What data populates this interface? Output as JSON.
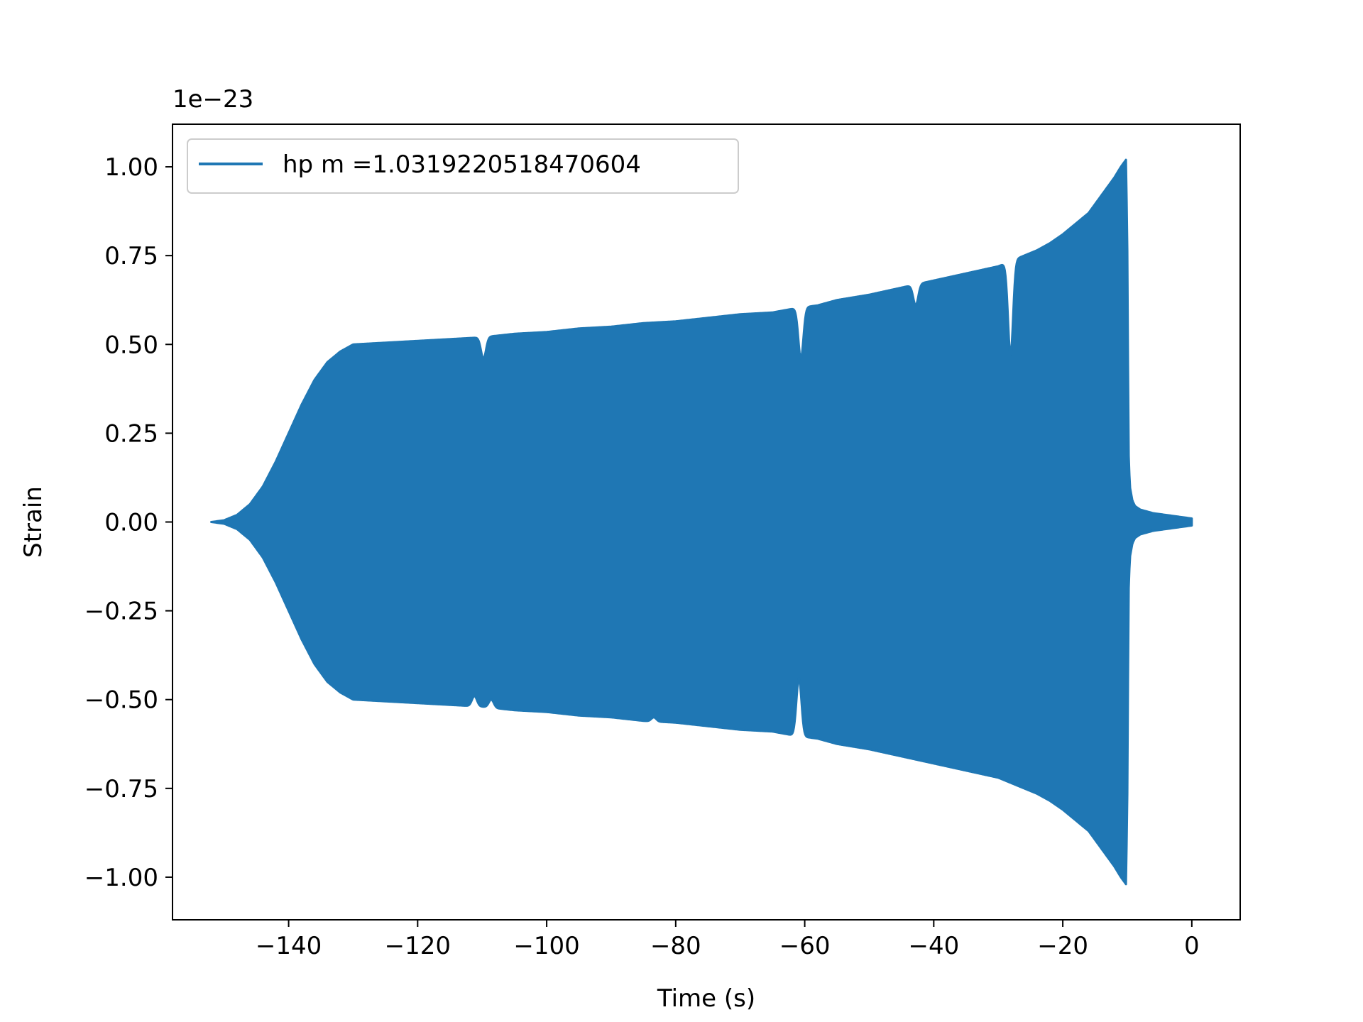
{
  "chart_data": {
    "type": "line",
    "title": "",
    "xlabel": "Time (s)",
    "ylabel": "Strain",
    "y_offset_text": "1e−23",
    "xlim": [
      -158,
      7.5
    ],
    "ylim": [
      -1.12,
      1.12
    ],
    "x_ticks": [
      -140,
      -120,
      -100,
      -80,
      -60,
      -40,
      -20,
      0
    ],
    "x_tick_labels": [
      "−140",
      "−120",
      "−100",
      "−80",
      "−60",
      "−40",
      "−20",
      "0"
    ],
    "y_ticks": [
      -1.0,
      -0.75,
      -0.5,
      -0.25,
      0.0,
      0.25,
      0.5,
      0.75,
      1.0
    ],
    "y_tick_labels": [
      "−1.00",
      "−0.75",
      "−0.50",
      "−0.25",
      "0.00",
      "0.25",
      "0.50",
      "0.75",
      "1.00"
    ],
    "grid": false,
    "legend_position": "top-left",
    "series": [
      {
        "name": "hp m =1.0319220518470604",
        "color": "#1f77b4",
        "envelope_time": [
          -152,
          -150,
          -148,
          -146,
          -144,
          -142,
          -140,
          -138,
          -136,
          -134,
          -132,
          -130,
          -125,
          -120,
          -115,
          -110,
          -105,
          -100,
          -95,
          -90,
          -85,
          -80,
          -75,
          -70,
          -65,
          -62,
          -60,
          -58,
          -55,
          -50,
          -45,
          -40,
          -35,
          -30,
          -28,
          -26,
          -24,
          -22,
          -20,
          -18,
          -16,
          -14,
          -12,
          -11,
          -10.2,
          -10,
          -9.8,
          -9.6,
          -9.2,
          -8.8,
          -8,
          -6,
          -4,
          -2,
          0
        ],
        "envelope_amplitude": [
          0.0,
          0.005,
          0.02,
          0.05,
          0.1,
          0.17,
          0.25,
          0.33,
          0.4,
          0.45,
          0.48,
          0.5,
          0.505,
          0.51,
          0.515,
          0.52,
          0.53,
          0.535,
          0.545,
          0.55,
          0.56,
          0.565,
          0.575,
          0.585,
          0.59,
          0.6,
          0.605,
          0.61,
          0.625,
          0.64,
          0.66,
          0.68,
          0.7,
          0.72,
          0.735,
          0.75,
          0.765,
          0.785,
          0.81,
          0.84,
          0.87,
          0.92,
          0.97,
          1.0,
          1.02,
          0.8,
          0.2,
          0.1,
          0.06,
          0.045,
          0.035,
          0.025,
          0.02,
          0.015,
          0.01
        ],
        "dips_upper": [
          {
            "time": -109.8,
            "amplitude": 0.46
          },
          {
            "time": -60.6,
            "amplitude": 0.46
          },
          {
            "time": -42.8,
            "amplitude": 0.61
          },
          {
            "time": -28.1,
            "amplitude": 0.47
          }
        ],
        "dips_lower": [
          {
            "time": -111.2,
            "amplitude": 0.49
          },
          {
            "time": -108.6,
            "amplitude": 0.5
          },
          {
            "time": -60.9,
            "amplitude": 0.44
          },
          {
            "time": -83.4,
            "amplitude": 0.55
          }
        ]
      }
    ]
  }
}
